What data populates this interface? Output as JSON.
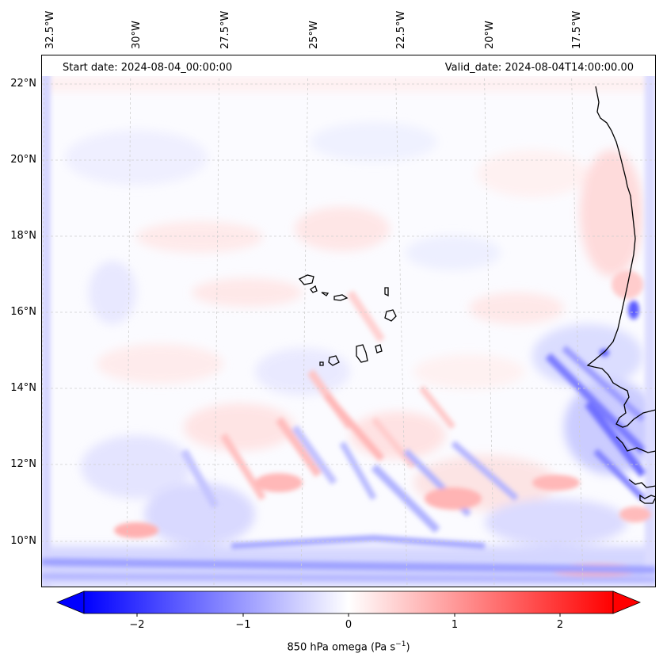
{
  "map": {
    "start_date_label": "Start date: 2024-08-04_00:00:00",
    "valid_date_label": "Valid_date: 2024-08-04T14:00:00.00",
    "lon_labels": [
      "32.5°W",
      "30°W",
      "27.5°W",
      "25°W",
      "22.5°W",
      "20°W",
      "17.5°W"
    ],
    "lat_labels": [
      "22°N",
      "20°N",
      "18°N",
      "16°N",
      "14°N",
      "12°N",
      "10°N"
    ],
    "field": "850 hPa omega",
    "colormap": "bwr",
    "coastline_color": "#000000",
    "gridline_style": "dashed-grey"
  },
  "colorbar": {
    "ticks": [
      "−2",
      "−1",
      "0",
      "1",
      "2"
    ],
    "tick_values": [
      -2,
      -1,
      0,
      1,
      2
    ],
    "range": [
      -2.5,
      2.5
    ],
    "extend": "both",
    "label_prefix": "850 hPa omega (Pa s",
    "label_exp": "−1",
    "label_suffix": ")",
    "colors": {
      "negative": "#0000ff",
      "zero": "#ffffff",
      "positive": "#ff0000"
    }
  }
}
